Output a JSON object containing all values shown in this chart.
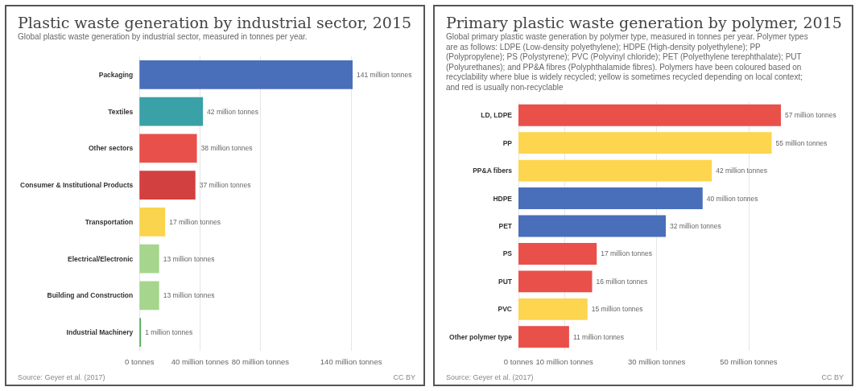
{
  "chart_data": [
    {
      "type": "bar",
      "orientation": "horizontal",
      "title": "Plastic waste generation by industrial sector, 2015",
      "subtitle": "Global plastic waste generation by industrial sector, measured in tonnes per year.",
      "categories": [
        "Packaging",
        "Textiles",
        "Other sectors",
        "Consumer & Institutional Products",
        "Transportation",
        "Electrical/Electronic",
        "Building and Construction",
        "Industrial Machinery"
      ],
      "values": [
        141,
        42,
        38,
        37,
        17,
        13,
        13,
        1
      ],
      "colors": [
        "#4a6fba",
        "#3aa1a6",
        "#e8514b",
        "#d2403f",
        "#fbd44e",
        "#a6d58d",
        "#a6d58d",
        "#55ab5c"
      ],
      "value_labels": [
        "141 million tonnes",
        "42 million tonnes",
        "38 million tonnes",
        "37 million tonnes",
        "17 million tonnes",
        "13 million tonnes",
        "13 million tonnes",
        "1 million tonnes"
      ],
      "xlim": [
        0,
        141
      ],
      "xticks": [
        {
          "value": 0,
          "label": "0 tonnes"
        },
        {
          "value": 40,
          "label": "40 million tonnes"
        },
        {
          "value": 80,
          "label": "80 million tonnes"
        },
        {
          "value": 140,
          "label": "140 million tonnes"
        }
      ],
      "grid": "x",
      "annotations": [
        "Source: Geyer et al. (2017)",
        "CC BY"
      ]
    },
    {
      "type": "bar",
      "orientation": "horizontal",
      "title": "Primary plastic waste generation by polymer, 2015",
      "subtitle": "Global primary plastic waste generation by polymer type, measured in tonnes per year. Polymer types are as follows: LDPE (Low-density polyethylene); HDPE (High-density polyethylene); PP (Polypropylene); PS (Polystyrene); PVC (Polyvinyl chloride); PET (Polyethylene terephthalate); PUT (Polyurethanes); and PP&A fibres (Polyphthalamide fibres). Polymers have been coloured based on recyclability where blue is widely recycled; yellow is sometimes recycled depending on local context; and red is usually non-recyclable",
      "categories": [
        "LD, LDPE",
        "PP",
        "PP&A fibers",
        "HDPE",
        "PET",
        "PS",
        "PUT",
        "PVC",
        "Other polymer type"
      ],
      "values": [
        57,
        55,
        42,
        40,
        32,
        17,
        16,
        15,
        11
      ],
      "colors": [
        "#e9504a",
        "#fdd54e",
        "#fdd54e",
        "#4a6fba",
        "#4a6fba",
        "#e9504a",
        "#e9504a",
        "#fdd54e",
        "#e9504a"
      ],
      "value_labels": [
        "57 million tonnes",
        "55 million tonnes",
        "42 million tonnes",
        "40 million tonnes",
        "32 million tonnes",
        "17 million tonnes",
        "16 million tonnes",
        "15 million tonnes",
        "11 million tonnes"
      ],
      "xlim": [
        0,
        57
      ],
      "xticks": [
        {
          "value": 0,
          "label": "0 tonnes"
        },
        {
          "value": 10,
          "label": "10 million tonnes"
        },
        {
          "value": 30,
          "label": "30 million tonnes"
        },
        {
          "value": 50,
          "label": "50 million tonnes"
        }
      ],
      "grid": "x",
      "annotations": [
        "Source: Geyer et al. (2017)",
        "CC BY"
      ]
    }
  ]
}
